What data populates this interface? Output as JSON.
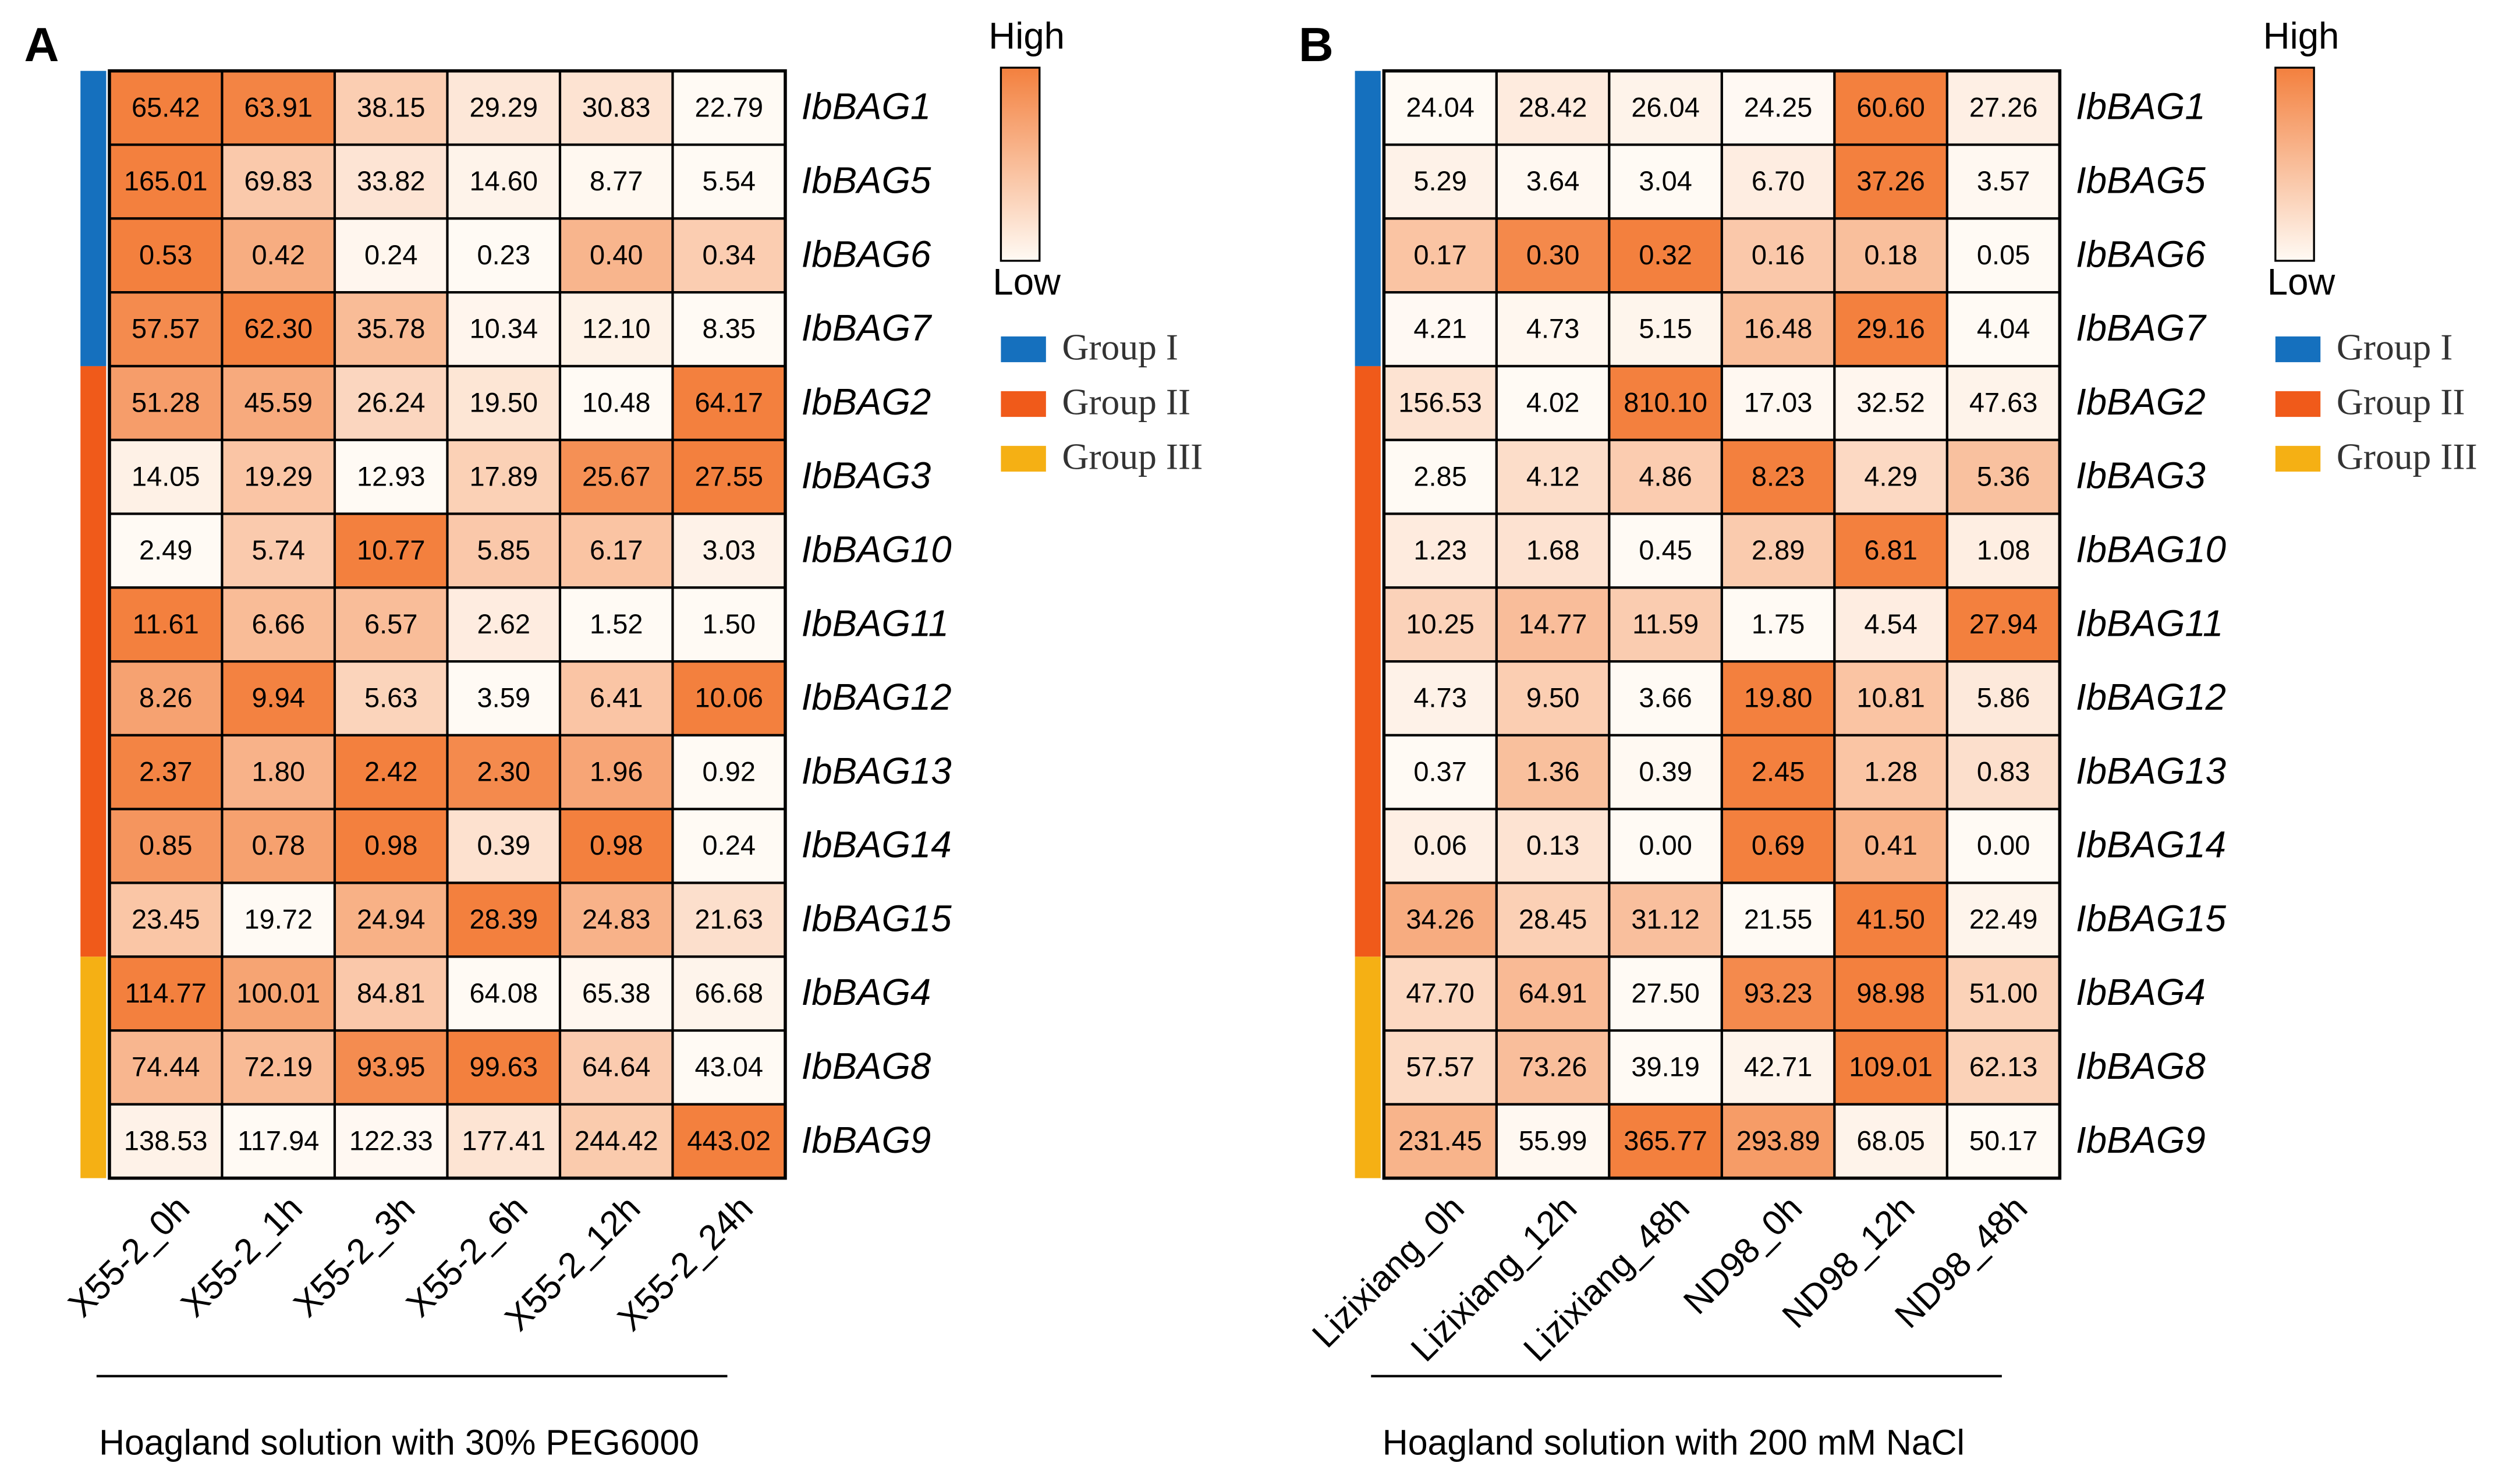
{
  "chart_data": [
    {
      "type": "heatmap",
      "panel": "A",
      "title": "Hoagland solution with 30% PEG6000",
      "rows": [
        "IbBAG1",
        "IbBAG5",
        "IbBAG6",
        "IbBAG7",
        "IbBAG2",
        "IbBAG3",
        "IbBAG10",
        "IbBAG11",
        "IbBAG12",
        "IbBAG13",
        "IbBAG14",
        "IbBAG15",
        "IbBAG4",
        "IbBAG8",
        "IbBAG9"
      ],
      "columns": [
        "X55-2_0h",
        "X55-2_1h",
        "X55-2_3h",
        "X55-2_6h",
        "X55-2_12h",
        "X55-2_24h"
      ],
      "values": [
        [
          65.42,
          63.91,
          38.15,
          29.29,
          30.83,
          22.79
        ],
        [
          165.01,
          69.83,
          33.82,
          14.6,
          8.77,
          5.54
        ],
        [
          0.53,
          0.42,
          0.24,
          0.23,
          0.4,
          0.34
        ],
        [
          57.57,
          62.3,
          35.78,
          10.34,
          12.1,
          8.35
        ],
        [
          51.28,
          45.59,
          26.24,
          19.5,
          10.48,
          64.17
        ],
        [
          14.05,
          19.29,
          12.93,
          17.89,
          25.67,
          27.55
        ],
        [
          2.49,
          5.74,
          10.77,
          5.85,
          6.17,
          3.03
        ],
        [
          11.61,
          6.66,
          6.57,
          2.62,
          1.52,
          1.5
        ],
        [
          8.26,
          9.94,
          5.63,
          3.59,
          6.41,
          10.06
        ],
        [
          2.37,
          1.8,
          2.42,
          2.3,
          1.96,
          0.92
        ],
        [
          0.85,
          0.78,
          0.98,
          0.39,
          0.98,
          0.24
        ],
        [
          23.45,
          19.72,
          24.94,
          28.39,
          24.83,
          21.63
        ],
        [
          114.77,
          100.01,
          84.81,
          64.08,
          65.38,
          66.68
        ],
        [
          74.44,
          72.19,
          93.95,
          99.63,
          64.64,
          43.04
        ],
        [
          138.53,
          117.94,
          122.33,
          177.41,
          244.42,
          443.02
        ]
      ],
      "value_labels": [
        [
          "65.42",
          "63.91",
          "38.15",
          "29.29",
          "30.83",
          "22.79"
        ],
        [
          "165.01",
          "69.83",
          "33.82",
          "14.60",
          "8.77",
          "5.54"
        ],
        [
          "0.53",
          "0.42",
          "0.24",
          "0.23",
          "0.40",
          "0.34"
        ],
        [
          "57.57",
          "62.30",
          "35.78",
          "10.34",
          "12.10",
          "8.35"
        ],
        [
          "51.28",
          "45.59",
          "26.24",
          "19.50",
          "10.48",
          "64.17"
        ],
        [
          "14.05",
          "19.29",
          "12.93",
          "17.89",
          "25.67",
          "27.55"
        ],
        [
          "2.49",
          "5.74",
          "10.77",
          "5.85",
          "6.17",
          "3.03"
        ],
        [
          "11.61",
          "6.66",
          "6.57",
          "2.62",
          "1.52",
          "1.50"
        ],
        [
          "8.26",
          "9.94",
          "5.63",
          "3.59",
          "6.41",
          "10.06"
        ],
        [
          "2.37",
          "1.80",
          "2.42",
          "2.30",
          "1.96",
          "0.92"
        ],
        [
          "0.85",
          "0.78",
          "0.98",
          "0.39",
          "0.98",
          "0.24"
        ],
        [
          "23.45",
          "19.72",
          "24.94",
          "28.39",
          "24.83",
          "21.63"
        ],
        [
          "114.77",
          "100.01",
          "84.81",
          "64.08",
          "65.38",
          "66.68"
        ],
        [
          "74.44",
          "72.19",
          "93.95",
          "99.63",
          "64.64",
          "43.04"
        ],
        [
          "138.53",
          "117.94",
          "122.33",
          "177.41",
          "244.42",
          "443.02"
        ]
      ],
      "groups": [
        {
          "name": "Group I",
          "color": "#1570be",
          "size": 4
        },
        {
          "name": "Group II",
          "color": "#f05a1a",
          "size": 8
        },
        {
          "name": "Group III",
          "color": "#f5b014",
          "size": 3
        }
      ],
      "colorbar": {
        "high": "High",
        "low": "Low",
        "high_color": "#f3803e",
        "low_color": "#fffaf4"
      }
    },
    {
      "type": "heatmap",
      "panel": "B",
      "title": "Hoagland solution with 200 mM NaCl",
      "rows": [
        "IbBAG1",
        "IbBAG5",
        "IbBAG6",
        "IbBAG7",
        "IbBAG2",
        "IbBAG3",
        "IbBAG10",
        "IbBAG11",
        "IbBAG12",
        "IbBAG13",
        "IbBAG14",
        "IbBAG15",
        "IbBAG4",
        "IbBAG8",
        "IbBAG9"
      ],
      "columns": [
        "Lizixiang_0h",
        "Lizixiang_12h",
        "Lizixiang_48h",
        "ND98_0h",
        "ND98_12h",
        "ND98_48h"
      ],
      "values": [
        [
          24.04,
          28.42,
          26.04,
          24.25,
          60.6,
          27.26
        ],
        [
          5.29,
          3.64,
          3.04,
          6.7,
          37.26,
          3.57
        ],
        [
          0.17,
          0.3,
          0.32,
          0.16,
          0.18,
          0.05
        ],
        [
          4.21,
          4.73,
          5.15,
          16.48,
          29.16,
          4.04
        ],
        [
          156.53,
          4.02,
          810.1,
          17.03,
          32.52,
          47.63
        ],
        [
          2.85,
          4.12,
          4.86,
          8.23,
          4.29,
          5.36
        ],
        [
          1.23,
          1.68,
          0.45,
          2.89,
          6.81,
          1.08
        ],
        [
          10.25,
          14.77,
          11.59,
          1.75,
          4.54,
          27.94
        ],
        [
          4.73,
          9.5,
          3.66,
          19.8,
          10.81,
          5.86
        ],
        [
          0.37,
          1.36,
          0.39,
          2.45,
          1.28,
          0.83
        ],
        [
          0.06,
          0.13,
          0,
          0.69,
          0.41,
          0
        ],
        [
          34.26,
          28.45,
          31.12,
          21.55,
          41.5,
          22.49
        ],
        [
          47.7,
          64.91,
          27.5,
          93.23,
          98.98,
          51
        ],
        [
          57.57,
          73.26,
          39.19,
          42.71,
          109.01,
          62.13
        ],
        [
          231.45,
          55.99,
          365.77,
          293.89,
          68.05,
          50.17
        ]
      ],
      "value_labels": [
        [
          "24.04",
          "28.42",
          "26.04",
          "24.25",
          "60.60",
          "27.26"
        ],
        [
          "5.29",
          "3.64",
          "3.04",
          "6.70",
          "37.26",
          "3.57"
        ],
        [
          "0.17",
          "0.30",
          "0.32",
          "0.16",
          "0.18",
          "0.05"
        ],
        [
          "4.21",
          "4.73",
          "5.15",
          "16.48",
          "29.16",
          "4.04"
        ],
        [
          "156.53",
          "4.02",
          "810.10",
          "17.03",
          "32.52",
          "47.63"
        ],
        [
          "2.85",
          "4.12",
          "4.86",
          "8.23",
          "4.29",
          "5.36"
        ],
        [
          "1.23",
          "1.68",
          "0.45",
          "2.89",
          "6.81",
          "1.08"
        ],
        [
          "10.25",
          "14.77",
          "11.59",
          "1.75",
          "4.54",
          "27.94"
        ],
        [
          "4.73",
          "9.50",
          "3.66",
          "19.80",
          "10.81",
          "5.86"
        ],
        [
          "0.37",
          "1.36",
          "0.39",
          "2.45",
          "1.28",
          "0.83"
        ],
        [
          "0.06",
          "0.13",
          "0.00",
          "0.69",
          "0.41",
          "0.00"
        ],
        [
          "34.26",
          "28.45",
          "31.12",
          "21.55",
          "41.50",
          "22.49"
        ],
        [
          "47.70",
          "64.91",
          "27.50",
          "93.23",
          "98.98",
          "51.00"
        ],
        [
          "57.57",
          "73.26",
          "39.19",
          "42.71",
          "109.01",
          "62.13"
        ],
        [
          "231.45",
          "55.99",
          "365.77",
          "293.89",
          "68.05",
          "50.17"
        ]
      ],
      "groups": [
        {
          "name": "Group I",
          "color": "#1570be",
          "size": 4
        },
        {
          "name": "Group II",
          "color": "#f05a1a",
          "size": 8
        },
        {
          "name": "Group III",
          "color": "#f5b014",
          "size": 3
        }
      ],
      "colorbar": {
        "high": "High",
        "low": "Low",
        "high_color": "#f3803e",
        "low_color": "#fffaf4"
      }
    }
  ]
}
